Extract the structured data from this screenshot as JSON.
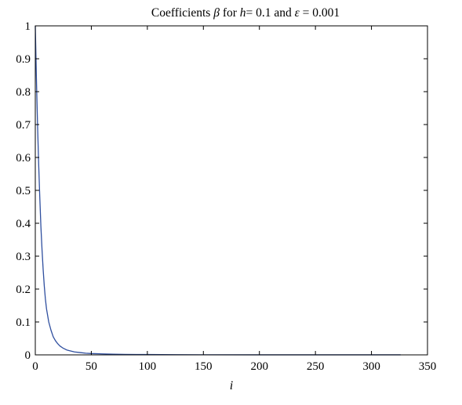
{
  "chart_data": {
    "type": "line",
    "title": {
      "prefix": "Coefficients ",
      "beta": "β",
      "middle": " for ",
      "h": "h",
      "middle2": "= 0.1 and ",
      "eps": "ε",
      "suffix": " = 0.001"
    },
    "xlabel": "i",
    "ylabel": "",
    "xlim": [
      0,
      350
    ],
    "ylim": [
      0,
      1
    ],
    "xticks": [
      0,
      50,
      100,
      150,
      200,
      250,
      300,
      350
    ],
    "yticks": [
      0,
      0.1,
      0.2,
      0.3,
      0.4,
      0.5,
      0.6,
      0.7,
      0.8,
      0.9,
      1
    ],
    "grid": false,
    "series_color": "#2f4f9f",
    "series": [
      {
        "x": [
          0,
          1,
          2,
          3,
          4,
          5,
          6,
          7,
          8,
          9,
          10,
          12,
          14,
          16,
          18,
          20,
          22,
          25,
          28,
          30,
          35,
          40,
          45,
          50,
          60,
          70,
          80,
          90,
          100,
          125,
          150,
          200,
          250,
          300,
          326
        ],
        "y": [
          1,
          0.84,
          0.7,
          0.58,
          0.48,
          0.39,
          0.32,
          0.26,
          0.21,
          0.17,
          0.14,
          0.1,
          0.075,
          0.055,
          0.043,
          0.034,
          0.027,
          0.02,
          0.015,
          0.013,
          0.009,
          0.007,
          0.005,
          0.004,
          0.003,
          0.002,
          0.0015,
          0.001,
          0.001,
          0.0005,
          0.0003,
          0.0002,
          0.0001,
          0.0001,
          0.0001
        ]
      }
    ]
  }
}
